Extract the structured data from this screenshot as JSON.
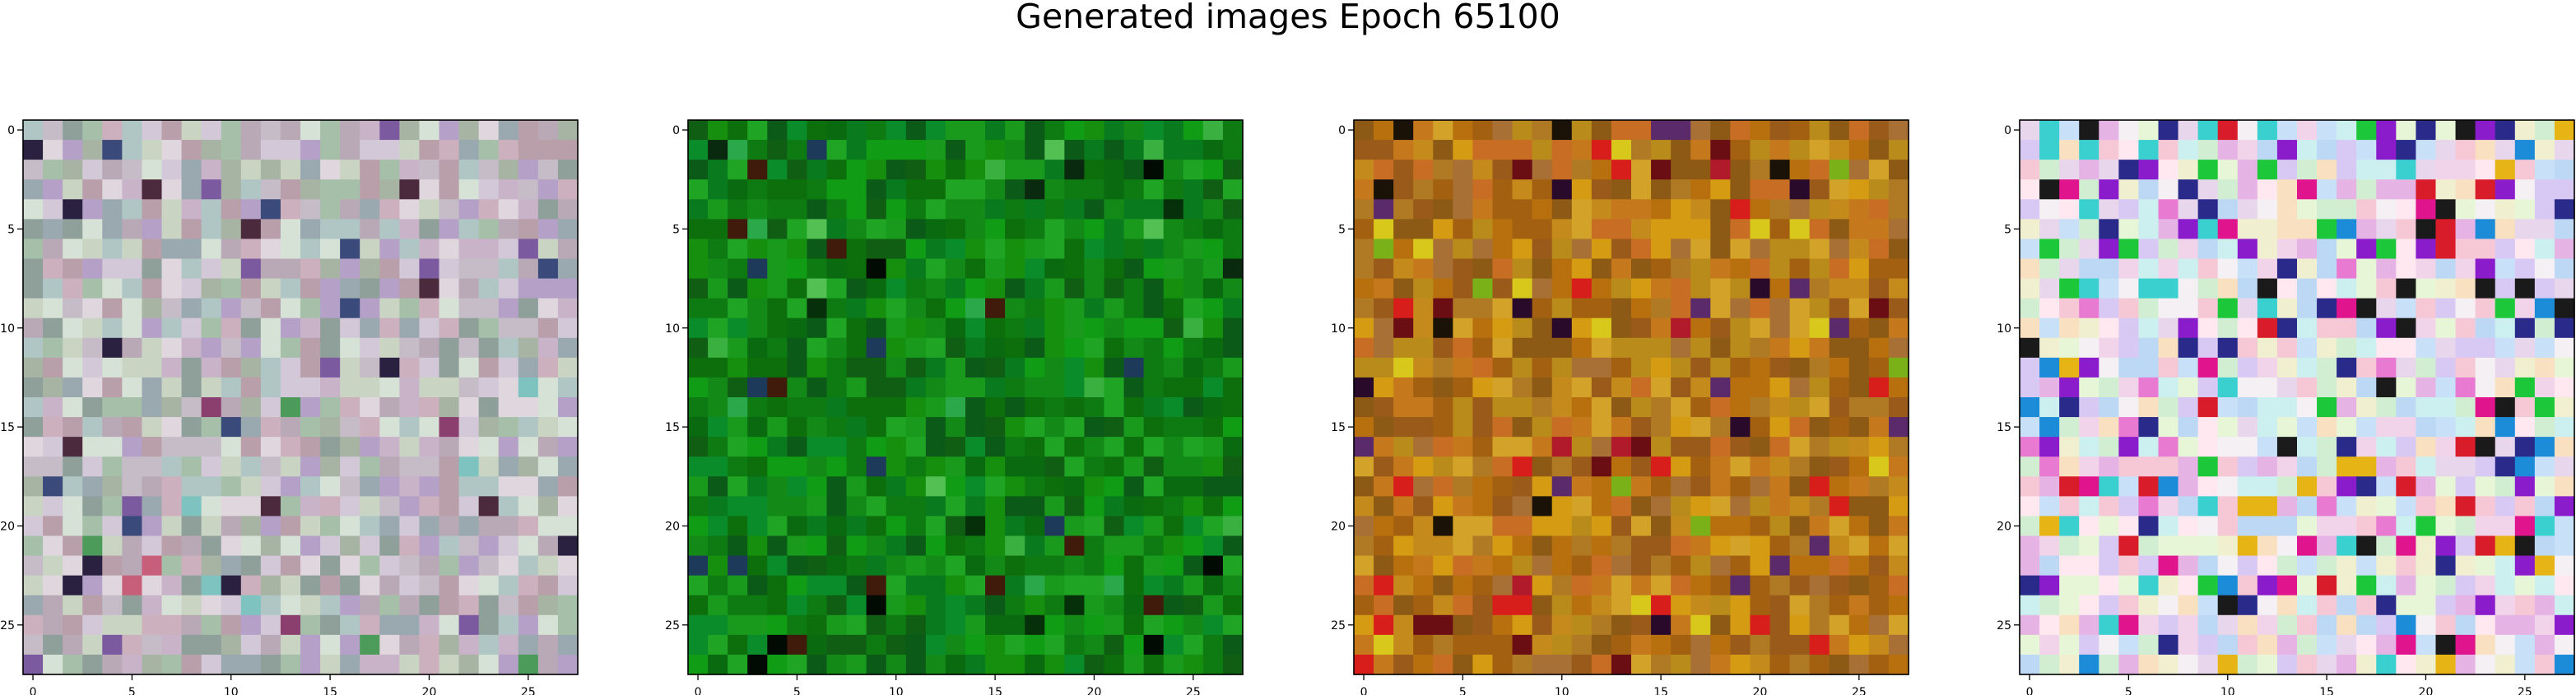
{
  "figure": {
    "title": "Generated images Epoch 65100"
  },
  "chart_data": {
    "type": "heatmap",
    "title": "Generated images Epoch 65100",
    "grid": false,
    "panels": [
      {
        "name": "",
        "xlim": [
          -0.5,
          27.5
        ],
        "ylim": [
          27.5,
          -0.5
        ],
        "xticks": [
          0,
          5,
          10,
          15,
          20,
          25
        ],
        "yticks": [
          0,
          5,
          10,
          15,
          20,
          25
        ],
        "xtick_labels": [
          "0",
          "5",
          "10",
          "15",
          "20",
          "25"
        ],
        "ytick_labels": [
          "0",
          "5",
          "10",
          "15",
          "20",
          "25"
        ],
        "palette": [
          "#b9a9b6",
          "#c6bcc8",
          "#a7b3a3",
          "#cdb0bd",
          "#b0c6c4",
          "#d2c8d8",
          "#9aa8b0",
          "#c9d4c3",
          "#e0d6de",
          "#b89fa9",
          "#a6bfa9",
          "#c8b3c9",
          "#8fa09a",
          "#d7e2d6",
          "#b5a1c7"
        ],
        "accents": [
          "#4a2a3c",
          "#7c5aa0",
          "#8a3f6e",
          "#4c9b5a",
          "#3a4a7a",
          "#2a2040",
          "#7fc3c0",
          "#c85f7a"
        ],
        "accent_rate": 0.06,
        "seed": 11
      },
      {
        "name": "",
        "xlim": [
          -0.5,
          27.5
        ],
        "ylim": [
          27.5,
          -0.5
        ],
        "xticks": [
          0,
          5,
          10,
          15,
          20,
          25
        ],
        "yticks": [
          0,
          5,
          10,
          15,
          20,
          25
        ],
        "xtick_labels": [
          "0",
          "5",
          "10",
          "15",
          "20",
          "25"
        ],
        "ytick_labels": [
          "0",
          "5",
          "10",
          "15",
          "20",
          "25"
        ],
        "palette": [
          "#0e7a12",
          "#138a18",
          "#0a6a10",
          "#1a9a1c",
          "#0f5e14",
          "#0b8c2a",
          "#168f0e",
          "#0a7a1f",
          "#1fa424",
          "#0d6e0c",
          "#0b5a18",
          "#109c14"
        ],
        "accents": [
          "#020a04",
          "#05300a",
          "#0a2a10",
          "#3ab040",
          "#1d3a5a",
          "#2aa84a",
          "#401a0a",
          "#52c052"
        ],
        "accent_rate": 0.07,
        "seed": 23
      },
      {
        "name": "",
        "xlim": [
          -0.5,
          27.5
        ],
        "ylim": [
          27.5,
          -0.5
        ],
        "xticks": [
          0,
          5,
          10,
          15,
          20,
          25
        ],
        "yticks": [
          0,
          5,
          10,
          15,
          20,
          25
        ],
        "xtick_labels": [
          "0",
          "5",
          "10",
          "15",
          "20",
          "25"
        ],
        "ytick_labels": [
          "0",
          "5",
          "10",
          "15",
          "20",
          "25"
        ],
        "palette": [
          "#b8700e",
          "#a36010",
          "#c58a1c",
          "#d59b12",
          "#9a5a1a",
          "#b07a24",
          "#c6781c",
          "#8c5a14",
          "#d3a228",
          "#a87034",
          "#b98b1a",
          "#c86e24"
        ],
        "accents": [
          "#6a0e14",
          "#2a0a2a",
          "#1a1206",
          "#d81e1a",
          "#7ab018",
          "#d8c81c",
          "#5a2a6a",
          "#b01a2a"
        ],
        "accent_rate": 0.1,
        "seed": 37
      },
      {
        "name": "",
        "xlim": [
          -0.5,
          27.5
        ],
        "ylim": [
          27.5,
          -0.5
        ],
        "xticks": [
          0,
          5,
          10,
          15,
          20,
          25
        ],
        "yticks": [
          0,
          5,
          10,
          15,
          20,
          25
        ],
        "xtick_labels": [
          "0",
          "5",
          "10",
          "15",
          "20",
          "25"
        ],
        "ytick_labels": [
          "0",
          "5",
          "10",
          "15",
          "20",
          "25"
        ],
        "palette": [
          "#f4f0f4",
          "#e8d6ec",
          "#f6c8d6",
          "#c8e0f8",
          "#e8f6d8",
          "#d8c8f4",
          "#f8e0c0",
          "#ccf0f0",
          "#e6b4e4",
          "#bcd8f4",
          "#f0f0d0",
          "#f2d4ea",
          "#d2eed2",
          "#ffe8f0"
        ],
        "accents": [
          "#e0148c",
          "#1a1a1a",
          "#2a2a8a",
          "#d81c2a",
          "#e6b414",
          "#1cc83a",
          "#3ad0d0",
          "#8a1ccc",
          "#e87ad2",
          "#1c8cd8"
        ],
        "accent_rate": 0.24,
        "seed": 53
      }
    ]
  }
}
